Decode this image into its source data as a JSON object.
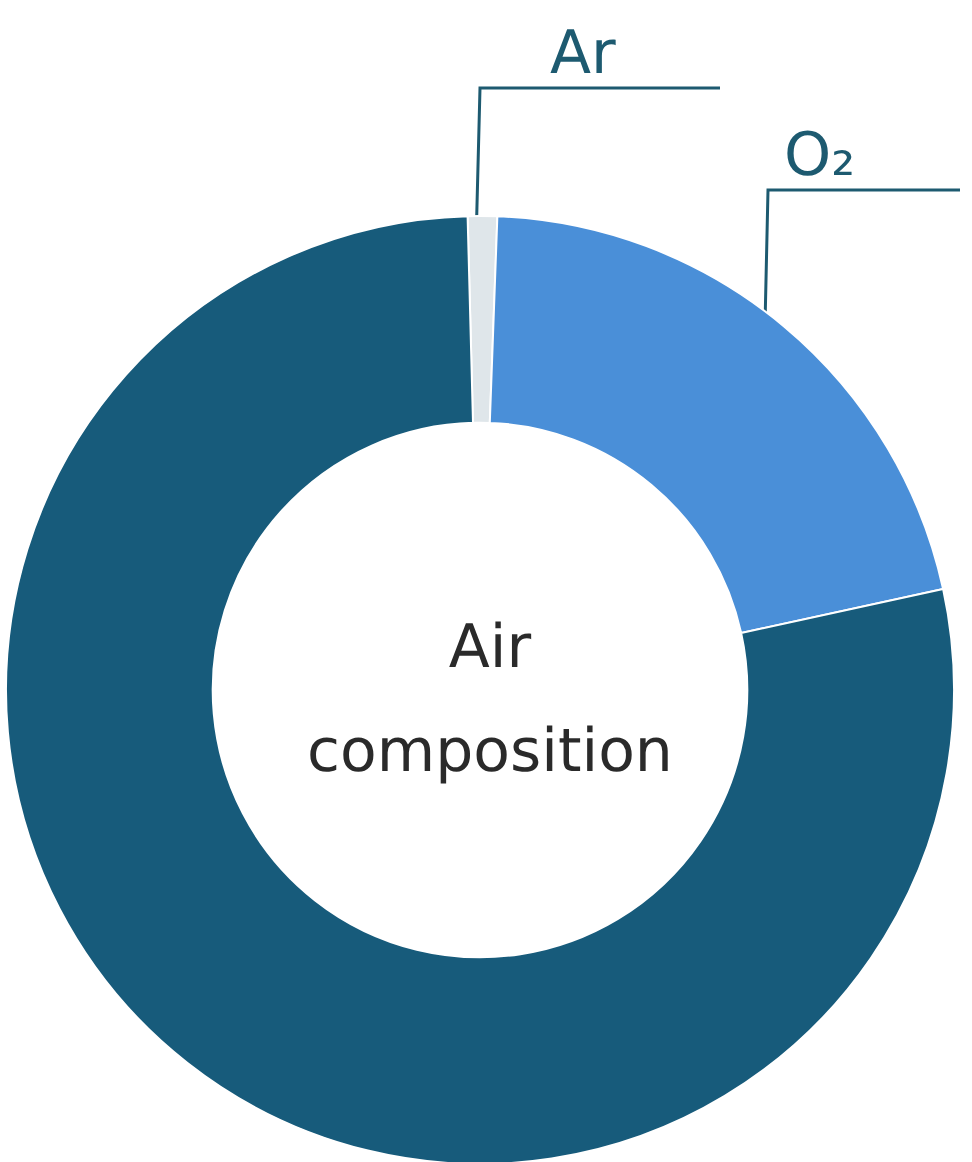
{
  "chart_data": {
    "type": "donut",
    "title": "Air\ncomposition",
    "categories": [
      "Ar",
      "O₂",
      null
    ],
    "values": [
      1,
      21,
      78
    ],
    "colors": [
      "#dfe6ea",
      "#4a8fd8",
      "#175b7b"
    ],
    "legend": false
  }
}
